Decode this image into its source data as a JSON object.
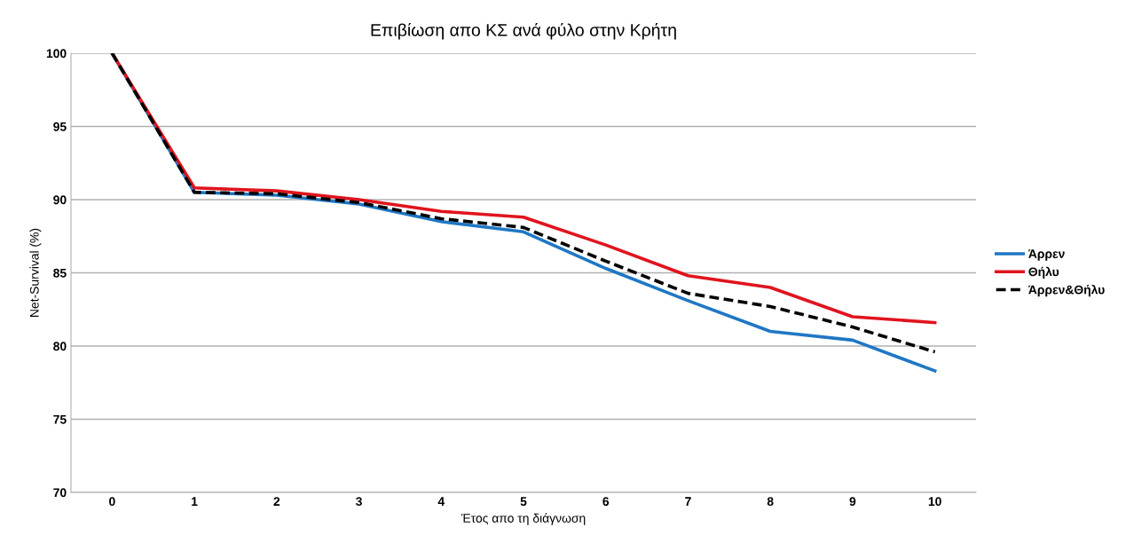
{
  "chart_data": {
    "type": "line",
    "title": "Επιβίωση απο ΚΣ ανά φύλο στην Κρήτη",
    "xlabel": "Έτος απο τη διάγνωση",
    "ylabel": "Net-Survival (%)",
    "categories": [
      "0",
      "1",
      "2",
      "3",
      "4",
      "5",
      "6",
      "7",
      "8",
      "9",
      "10"
    ],
    "series": [
      {
        "name": "Άρρεν",
        "color": "#1f77c4",
        "line_style": "solid",
        "values": [
          100,
          90.5,
          90.3,
          89.7,
          88.5,
          87.8,
          85.3,
          83.1,
          81.0,
          80.4,
          78.3
        ]
      },
      {
        "name": "Θήλυ",
        "color": "#e0141e",
        "line_style": "solid",
        "values": [
          100,
          90.8,
          90.6,
          90.0,
          89.2,
          88.8,
          86.9,
          84.8,
          84.0,
          82.0,
          81.6
        ]
      },
      {
        "name": "Άρρεν&Θήλυ",
        "color": "#000000",
        "line_style": "dashed",
        "values": [
          100,
          90.5,
          90.4,
          89.8,
          88.7,
          88.1,
          85.8,
          83.6,
          82.7,
          81.3,
          79.6
        ]
      }
    ],
    "ylim": [
      70,
      100
    ],
    "yticks": [
      70,
      75,
      80,
      85,
      90,
      95,
      100
    ],
    "grid": "y",
    "legend": "right",
    "marker": "none"
  }
}
